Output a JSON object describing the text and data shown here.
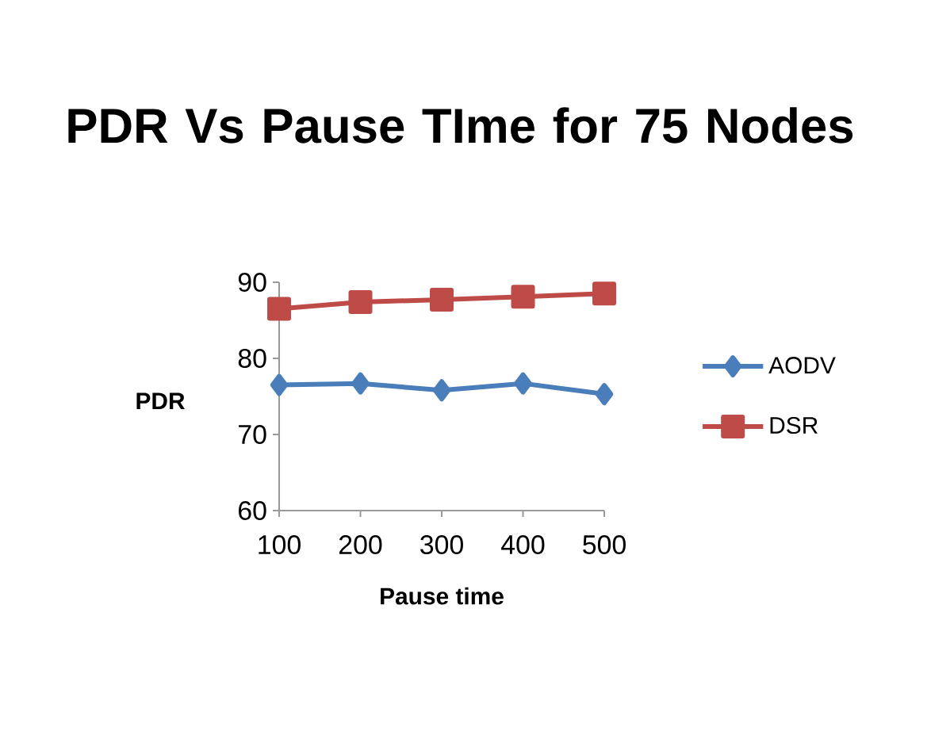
{
  "chart_data": {
    "type": "line",
    "title": "PDR Vs Pause TIme for 75 Nodes",
    "xlabel": "Pause time",
    "ylabel": "PDR",
    "categories": [
      "100",
      "200",
      "300",
      "400",
      "500"
    ],
    "series": [
      {
        "name": "AODV",
        "color": "#4a7ebb",
        "marker": "diamond",
        "values": [
          76.5,
          76.7,
          75.8,
          76.7,
          75.3
        ]
      },
      {
        "name": "DSR",
        "color": "#be4b48",
        "marker": "square",
        "values": [
          86.5,
          87.4,
          87.7,
          88.1,
          88.5
        ]
      }
    ],
    "ylim": [
      60,
      90
    ],
    "yticks": [
      60,
      70,
      80,
      90
    ],
    "grid": false,
    "legend": "right",
    "line_style": "solid"
  }
}
